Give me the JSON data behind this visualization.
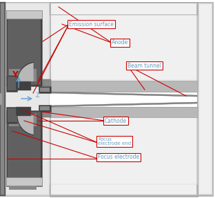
{
  "background": "#ffffff",
  "fig_w": 3.12,
  "fig_h": 2.87,
  "dpi": 100,
  "colors": {
    "red": "#cc0000",
    "blue": "#6699cc",
    "label_text": "#6699bb",
    "c1": "#d0d0d0",
    "c2": "#e8e8e8",
    "c3": "#b8b8b8",
    "c4": "#a0a0a0",
    "c5": "#888888",
    "c6": "#606060",
    "c7": "#404040",
    "c8": "#c8c8c8",
    "c9": "#f0f0f0",
    "white": "#ffffff"
  },
  "labels": {
    "emission": "Emission surface",
    "anode": "Anode",
    "beam_tunnel": "Beam tunnel",
    "cathode": "Cathode",
    "focus_end": "Focus\nelectrode end",
    "focus": "Focus electrode",
    "Y": "Y",
    "Z": "Z"
  }
}
